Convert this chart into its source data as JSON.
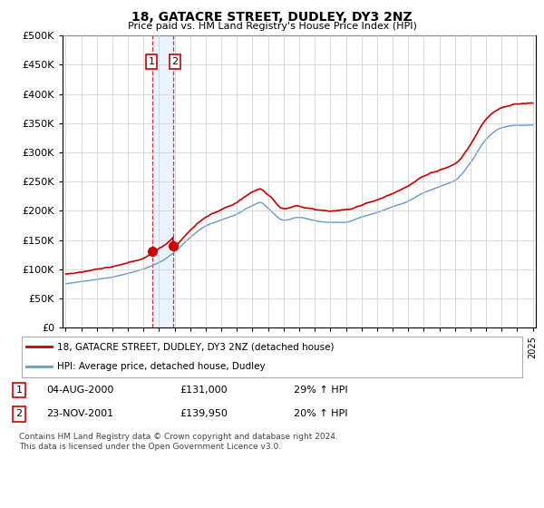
{
  "title": "18, GATACRE STREET, DUDLEY, DY3 2NZ",
  "subtitle": "Price paid vs. HM Land Registry's House Price Index (HPI)",
  "ylim": [
    0,
    500000
  ],
  "yticks": [
    0,
    50000,
    100000,
    150000,
    200000,
    250000,
    300000,
    350000,
    400000,
    450000,
    500000
  ],
  "background_color": "#ffffff",
  "grid_color": "#cccccc",
  "sale_color": "#cc0000",
  "hpi_color": "#6699cc",
  "transaction1_year": 2000.583,
  "transaction1_price": 131000,
  "transaction2_year": 2001.897,
  "transaction2_price": 139950,
  "legend_label_sale": "18, GATACRE STREET, DUDLEY, DY3 2NZ (detached house)",
  "legend_label_hpi": "HPI: Average price, detached house, Dudley",
  "annotation1_text": "04-AUG-2000",
  "annotation1_price": "£131,000",
  "annotation1_hpi": "29% ↑ HPI",
  "annotation2_text": "23-NOV-2001",
  "annotation2_price": "£139,950",
  "annotation2_hpi": "20% ↑ HPI",
  "footnote": "Contains HM Land Registry data © Crown copyright and database right 2024.\nThis data is licensed under the Open Government Licence v3.0."
}
